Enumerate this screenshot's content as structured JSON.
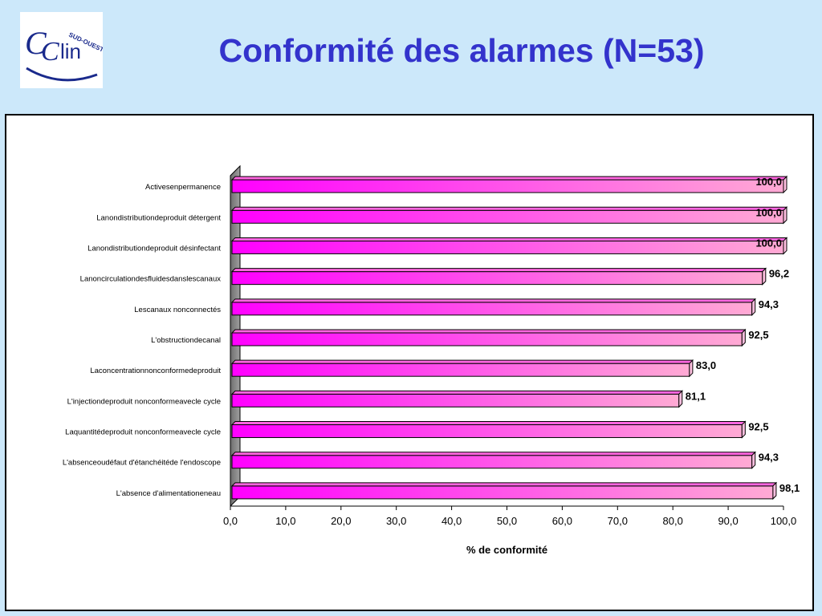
{
  "slide": {
    "title": "Conformité des alarmes (N=53)",
    "logo_text": "CClin",
    "logo_subtext": "SUD-OUEST"
  },
  "chart_data": {
    "type": "bar",
    "orientation": "horizontal",
    "categories": [
      "Activesenpermanence",
      "Lanondistributiondeproduit détergent",
      "Lanondistributiondeproduit désinfectant",
      "Lanoncirculationdesfluidesdanslescanaux",
      "Lescanaux nonconnectés",
      "L'obstructiondecanal",
      "Laconcentrationnonconformedeproduit",
      "L'injectiondeproduit nonconformeavecle cycle",
      "Laquantitédeproduit nonconformeavecle cycle",
      "L'absenceoudéfaut d'étanchéitéde l'endoscope",
      "L'absence d'alimentationeneau"
    ],
    "values": [
      100.0,
      100.0,
      100.0,
      96.2,
      94.3,
      92.5,
      83.0,
      81.1,
      92.5,
      94.3,
      98.1
    ],
    "value_labels": [
      "100,0",
      "100,0",
      "100,0",
      "96,2",
      "94,3",
      "92,5",
      "83,0",
      "81,1",
      "92,5",
      "94,3",
      "98,1"
    ],
    "xlim": [
      0,
      100
    ],
    "x_ticks": [
      "0,0",
      "10,0",
      "20,0",
      "30,0",
      "40,0",
      "50,0",
      "60,0",
      "70,0",
      "80,0",
      "90,0",
      "100,0"
    ],
    "xlabel": "% de conformité",
    "bar_color_start": "#ff00ff",
    "bar_color_end": "#ffaad4",
    "grid": false,
    "legend": "none"
  }
}
